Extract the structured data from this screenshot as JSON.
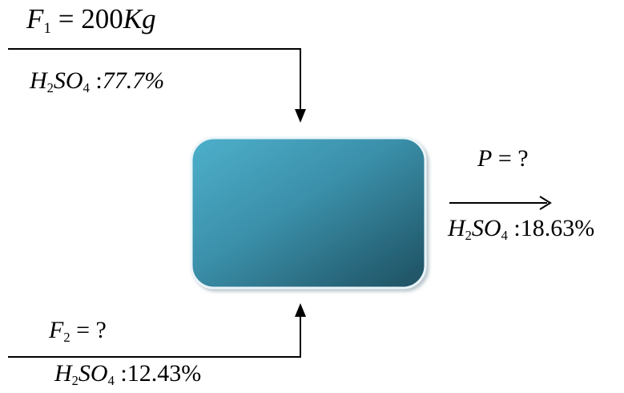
{
  "streams": {
    "f1": {
      "symbol": "F",
      "index": "1",
      "value_number": "200",
      "value_unit": "Kg",
      "species": {
        "h": "H",
        "h_sub": "2",
        "so": "SO",
        "so_sub": "4",
        "fraction": "77.7%"
      }
    },
    "f2": {
      "symbol": "F",
      "index": "2",
      "value": "?",
      "species": {
        "h": "H",
        "h_sub": "2",
        "so": "SO",
        "so_sub": "4",
        "fraction": "12.43%"
      }
    },
    "p": {
      "symbol": "P",
      "value": "?",
      "species": {
        "h": "H",
        "h_sub": "2",
        "so": "SO",
        "so_sub": "4",
        "fraction": "18.63%"
      }
    }
  },
  "operators": {
    "equals": "=",
    "colon": ":"
  },
  "colors": {
    "box_light": "#4aa8c4",
    "box_dark": "#1f5466",
    "box_border": "#e6f3f8",
    "line": "#000000"
  }
}
